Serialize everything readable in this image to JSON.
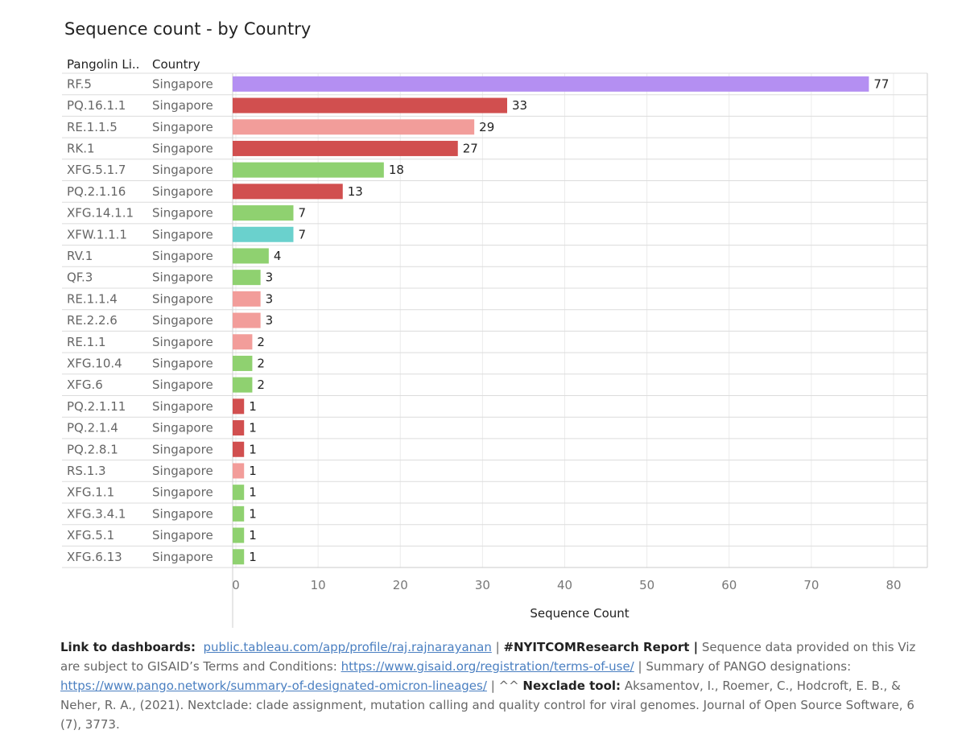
{
  "title": "Sequence count - by Country",
  "headers": {
    "lineage": "Pangolin Li..",
    "country": "Country"
  },
  "colors": {
    "purple": "#b48ff2",
    "red": "#d14f4f",
    "pink": "#f29d9a",
    "green": "#8fd170",
    "teal": "#6ad1cd"
  },
  "chart_data": {
    "type": "bar",
    "orientation": "horizontal",
    "xlabel": "Sequence Count",
    "xlim": [
      0,
      84
    ],
    "xticks": [
      0,
      10,
      20,
      30,
      40,
      50,
      60,
      70,
      80
    ],
    "grid": true,
    "rows": [
      {
        "lineage": "RF.5",
        "country": "Singapore",
        "value": 77,
        "color": "purple"
      },
      {
        "lineage": "PQ.16.1.1",
        "country": "Singapore",
        "value": 33,
        "color": "red"
      },
      {
        "lineage": "RE.1.1.5",
        "country": "Singapore",
        "value": 29,
        "color": "pink"
      },
      {
        "lineage": "RK.1",
        "country": "Singapore",
        "value": 27,
        "color": "red"
      },
      {
        "lineage": "XFG.5.1.7",
        "country": "Singapore",
        "value": 18,
        "color": "green"
      },
      {
        "lineage": "PQ.2.1.16",
        "country": "Singapore",
        "value": 13,
        "color": "red"
      },
      {
        "lineage": "XFG.14.1.1",
        "country": "Singapore",
        "value": 7,
        "color": "green"
      },
      {
        "lineage": "XFW.1.1.1",
        "country": "Singapore",
        "value": 7,
        "color": "teal"
      },
      {
        "lineage": "RV.1",
        "country": "Singapore",
        "value": 4,
        "color": "green"
      },
      {
        "lineage": "QF.3",
        "country": "Singapore",
        "value": 3,
        "color": "green"
      },
      {
        "lineage": "RE.1.1.4",
        "country": "Singapore",
        "value": 3,
        "color": "pink"
      },
      {
        "lineage": "RE.2.2.6",
        "country": "Singapore",
        "value": 3,
        "color": "pink"
      },
      {
        "lineage": "RE.1.1",
        "country": "Singapore",
        "value": 2,
        "color": "pink"
      },
      {
        "lineage": "XFG.10.4",
        "country": "Singapore",
        "value": 2,
        "color": "green"
      },
      {
        "lineage": "XFG.6",
        "country": "Singapore",
        "value": 2,
        "color": "green"
      },
      {
        "lineage": "PQ.2.1.11",
        "country": "Singapore",
        "value": 1,
        "color": "red"
      },
      {
        "lineage": "PQ.2.1.4",
        "country": "Singapore",
        "value": 1,
        "color": "red"
      },
      {
        "lineage": "PQ.2.8.1",
        "country": "Singapore",
        "value": 1,
        "color": "red"
      },
      {
        "lineage": "RS.1.3",
        "country": "Singapore",
        "value": 1,
        "color": "pink"
      },
      {
        "lineage": "XFG.1.1",
        "country": "Singapore",
        "value": 1,
        "color": "green"
      },
      {
        "lineage": "XFG.3.4.1",
        "country": "Singapore",
        "value": 1,
        "color": "green"
      },
      {
        "lineage": "XFG.5.1",
        "country": "Singapore",
        "value": 1,
        "color": "green"
      },
      {
        "lineage": "XFG.6.13",
        "country": "Singapore",
        "value": 1,
        "color": "green"
      }
    ]
  },
  "footer": {
    "link_label": "Link to dashboards:",
    "link1": "public.tableau.com/app/profile/raj.rajnarayanan",
    "sep1": " | ",
    "report": "#NYITCOMResearch Report |",
    "text1": " Sequence data provided on this Viz are subject to GISAID’s Terms and Conditions: ",
    "link2": "https://www.gisaid.org/registration/terms-of-use/",
    "text2": " | Summary of PANGO designations: ",
    "link3": "https://www.pango.network/summary-of-designated-omicron-lineages/",
    "text3": " | ^^ ",
    "nextclade_label": "Nexclade tool:",
    "citation": " Aksamentov, I., Roemer, C., Hodcroft, E. B., & Neher, R. A., (2021). Nextclade: clade assignment, mutation calling and quality control for viral genomes. Journal of Open Source Software, 6 (7), 3773."
  }
}
